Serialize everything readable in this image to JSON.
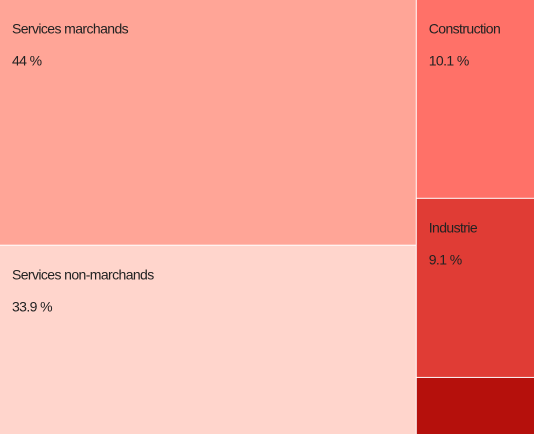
{
  "chart_data": {
    "type": "treemap",
    "categories": [
      "Services marchands",
      "Services non-marchands",
      "Construction",
      "Industrie",
      null
    ],
    "values": [
      44,
      33.9,
      10.1,
      9.1,
      2.9
    ],
    "value_labels": [
      "44 %",
      "33.9 %",
      "10.1 %",
      "9.1 %",
      null
    ],
    "colors": [
      "#ffa597",
      "#ffd5cc",
      "#ff7168",
      "#e03c35",
      "#b5100c"
    ]
  }
}
